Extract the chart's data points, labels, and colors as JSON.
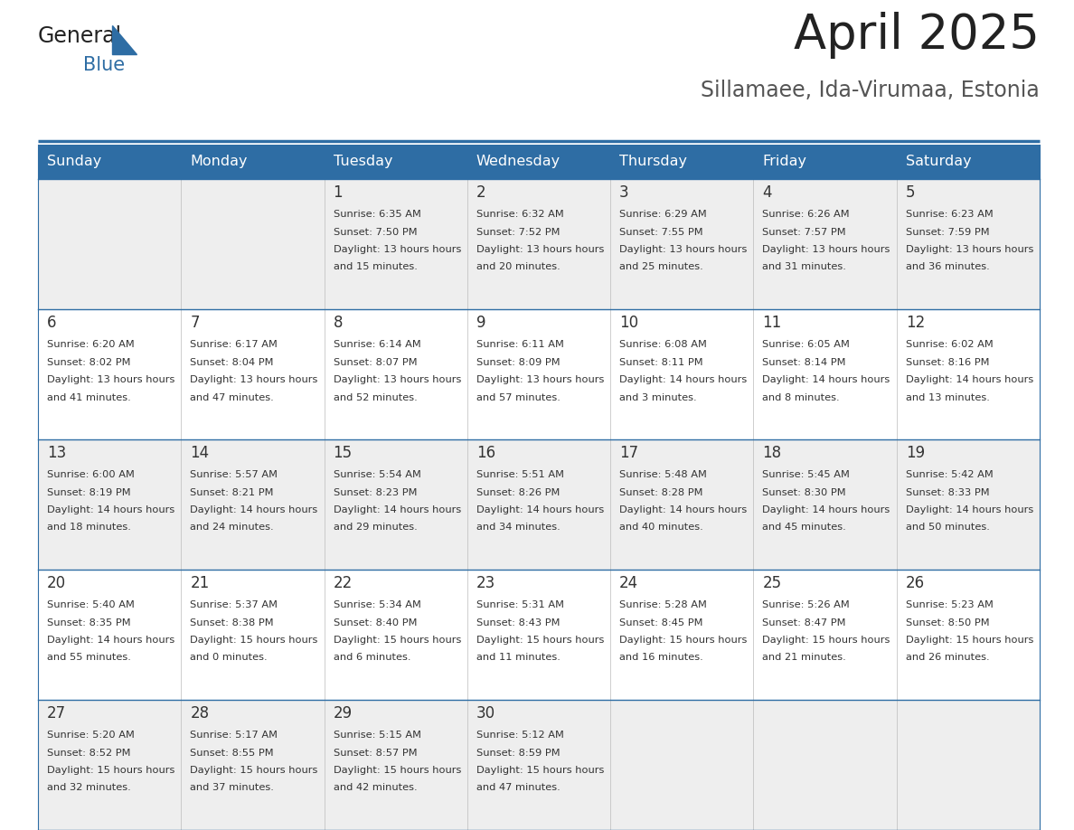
{
  "title": "April 2025",
  "subtitle": "Sillamaee, Ida-Virumaa, Estonia",
  "days_of_week": [
    "Sunday",
    "Monday",
    "Tuesday",
    "Wednesday",
    "Thursday",
    "Friday",
    "Saturday"
  ],
  "header_bg": "#2e6da4",
  "header_text": "#ffffff",
  "row_bg_odd": "#eeeeee",
  "row_bg_even": "#ffffff",
  "cell_text": "#333333",
  "border_color": "#2e6da4",
  "title_color": "#222222",
  "subtitle_color": "#555555",
  "fig_width": 11.88,
  "fig_height": 9.18,
  "calendar_data": [
    [
      {
        "day": "",
        "sunrise": "",
        "sunset": "",
        "daylight": ""
      },
      {
        "day": "",
        "sunrise": "",
        "sunset": "",
        "daylight": ""
      },
      {
        "day": "1",
        "sunrise": "6:35 AM",
        "sunset": "7:50 PM",
        "daylight": "13 hours and 15 minutes."
      },
      {
        "day": "2",
        "sunrise": "6:32 AM",
        "sunset": "7:52 PM",
        "daylight": "13 hours and 20 minutes."
      },
      {
        "day": "3",
        "sunrise": "6:29 AM",
        "sunset": "7:55 PM",
        "daylight": "13 hours and 25 minutes."
      },
      {
        "day": "4",
        "sunrise": "6:26 AM",
        "sunset": "7:57 PM",
        "daylight": "13 hours and 31 minutes."
      },
      {
        "day": "5",
        "sunrise": "6:23 AM",
        "sunset": "7:59 PM",
        "daylight": "13 hours and 36 minutes."
      }
    ],
    [
      {
        "day": "6",
        "sunrise": "6:20 AM",
        "sunset": "8:02 PM",
        "daylight": "13 hours and 41 minutes."
      },
      {
        "day": "7",
        "sunrise": "6:17 AM",
        "sunset": "8:04 PM",
        "daylight": "13 hours and 47 minutes."
      },
      {
        "day": "8",
        "sunrise": "6:14 AM",
        "sunset": "8:07 PM",
        "daylight": "13 hours and 52 minutes."
      },
      {
        "day": "9",
        "sunrise": "6:11 AM",
        "sunset": "8:09 PM",
        "daylight": "13 hours and 57 minutes."
      },
      {
        "day": "10",
        "sunrise": "6:08 AM",
        "sunset": "8:11 PM",
        "daylight": "14 hours and 3 minutes."
      },
      {
        "day": "11",
        "sunrise": "6:05 AM",
        "sunset": "8:14 PM",
        "daylight": "14 hours and 8 minutes."
      },
      {
        "day": "12",
        "sunrise": "6:02 AM",
        "sunset": "8:16 PM",
        "daylight": "14 hours and 13 minutes."
      }
    ],
    [
      {
        "day": "13",
        "sunrise": "6:00 AM",
        "sunset": "8:19 PM",
        "daylight": "14 hours and 18 minutes."
      },
      {
        "day": "14",
        "sunrise": "5:57 AM",
        "sunset": "8:21 PM",
        "daylight": "14 hours and 24 minutes."
      },
      {
        "day": "15",
        "sunrise": "5:54 AM",
        "sunset": "8:23 PM",
        "daylight": "14 hours and 29 minutes."
      },
      {
        "day": "16",
        "sunrise": "5:51 AM",
        "sunset": "8:26 PM",
        "daylight": "14 hours and 34 minutes."
      },
      {
        "day": "17",
        "sunrise": "5:48 AM",
        "sunset": "8:28 PM",
        "daylight": "14 hours and 40 minutes."
      },
      {
        "day": "18",
        "sunrise": "5:45 AM",
        "sunset": "8:30 PM",
        "daylight": "14 hours and 45 minutes."
      },
      {
        "day": "19",
        "sunrise": "5:42 AM",
        "sunset": "8:33 PM",
        "daylight": "14 hours and 50 minutes."
      }
    ],
    [
      {
        "day": "20",
        "sunrise": "5:40 AM",
        "sunset": "8:35 PM",
        "daylight": "14 hours and 55 minutes."
      },
      {
        "day": "21",
        "sunrise": "5:37 AM",
        "sunset": "8:38 PM",
        "daylight": "15 hours and 0 minutes."
      },
      {
        "day": "22",
        "sunrise": "5:34 AM",
        "sunset": "8:40 PM",
        "daylight": "15 hours and 6 minutes."
      },
      {
        "day": "23",
        "sunrise": "5:31 AM",
        "sunset": "8:43 PM",
        "daylight": "15 hours and 11 minutes."
      },
      {
        "day": "24",
        "sunrise": "5:28 AM",
        "sunset": "8:45 PM",
        "daylight": "15 hours and 16 minutes."
      },
      {
        "day": "25",
        "sunrise": "5:26 AM",
        "sunset": "8:47 PM",
        "daylight": "15 hours and 21 minutes."
      },
      {
        "day": "26",
        "sunrise": "5:23 AM",
        "sunset": "8:50 PM",
        "daylight": "15 hours and 26 minutes."
      }
    ],
    [
      {
        "day": "27",
        "sunrise": "5:20 AM",
        "sunset": "8:52 PM",
        "daylight": "15 hours and 32 minutes."
      },
      {
        "day": "28",
        "sunrise": "5:17 AM",
        "sunset": "8:55 PM",
        "daylight": "15 hours and 37 minutes."
      },
      {
        "day": "29",
        "sunrise": "5:15 AM",
        "sunset": "8:57 PM",
        "daylight": "15 hours and 42 minutes."
      },
      {
        "day": "30",
        "sunrise": "5:12 AM",
        "sunset": "8:59 PM",
        "daylight": "15 hours and 47 minutes."
      },
      {
        "day": "",
        "sunrise": "",
        "sunset": "",
        "daylight": ""
      },
      {
        "day": "",
        "sunrise": "",
        "sunset": "",
        "daylight": ""
      },
      {
        "day": "",
        "sunrise": "",
        "sunset": "",
        "daylight": ""
      }
    ]
  ]
}
